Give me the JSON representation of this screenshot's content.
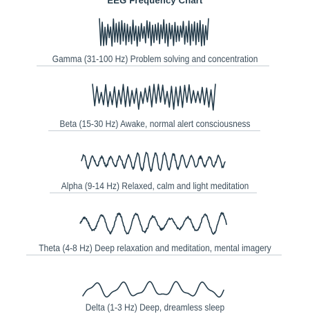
{
  "title": "EEG Frequency Chart",
  "bands": [
    {
      "name": "Gamma",
      "label": "Gamma (31-100 Hz) Problem solving and concentration",
      "range_hz": [
        31,
        100
      ],
      "description": "Problem solving and concentration"
    },
    {
      "name": "Beta",
      "label": "Beta (15-30 Hz) Awake, normal alert consciousness",
      "range_hz": [
        15,
        30
      ],
      "description": "Awake, normal alert consciousness"
    },
    {
      "name": "Alpha",
      "label": "Alpha (9-14 Hz) Relaxed, calm and light meditation",
      "range_hz": [
        9,
        14
      ],
      "description": "Relaxed, calm and light meditation"
    },
    {
      "name": "Theta",
      "label": "Theta (4-8 Hz) Deep relaxation and meditation, mental imagery",
      "range_hz": [
        4,
        8
      ],
      "description": "Deep relaxation and meditation, mental imagery"
    },
    {
      "name": "Delta",
      "label": "Delta (1-3 Hz) Deep, dreamless sleep",
      "range_hz": [
        1,
        3
      ],
      "description": "Deep, dreamless sleep"
    }
  ],
  "colors": {
    "wave": "#243b4a",
    "text": "#3e4f5c",
    "rule": "#c7ced4"
  }
}
